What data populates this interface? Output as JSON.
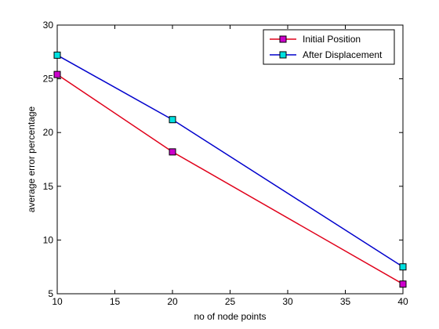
{
  "chart_data": {
    "type": "line",
    "x": [
      10,
      20,
      40
    ],
    "xlabel": "no of node points",
    "ylabel": "average error percentage",
    "xlim": [
      10,
      40
    ],
    "ylim": [
      5,
      30
    ],
    "xticks": [
      10,
      15,
      20,
      25,
      30,
      35,
      40
    ],
    "yticks": [
      5,
      10,
      15,
      20,
      25,
      30
    ],
    "grid": false,
    "legend_position": "top-right",
    "series": [
      {
        "name": "Initial Position",
        "values": [
          25.4,
          18.2,
          5.9
        ],
        "line_color": "#e0001a",
        "marker_color": "#cc00cc"
      },
      {
        "name": "After Displacement",
        "values": [
          27.2,
          21.2,
          7.5
        ],
        "line_color": "#0000cc",
        "marker_color": "#00e0e0"
      }
    ]
  }
}
